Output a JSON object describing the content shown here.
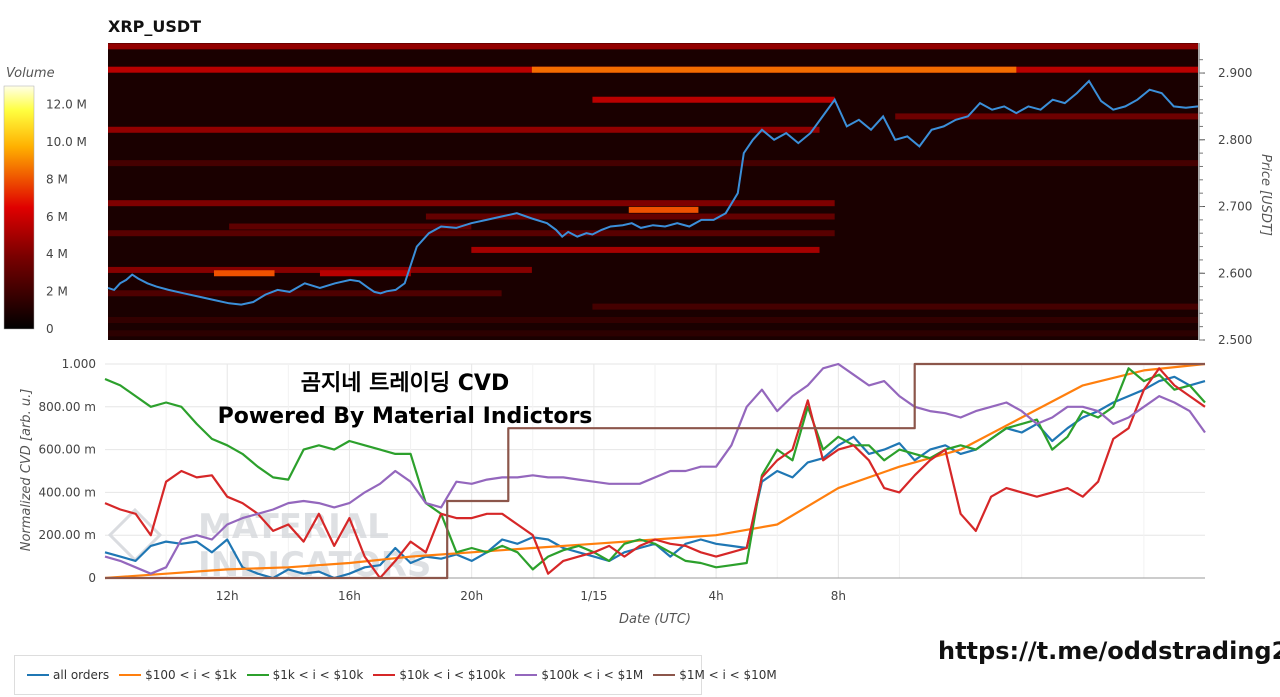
{
  "header": {
    "pair_title": "XRP_USDT"
  },
  "overlay": {
    "title_line1": "곰지네 트레이딩 CVD",
    "title_line2": "Powered By Material Indictors",
    "watermark_line1": "MATERIAL",
    "watermark_line2": "INDICATORS"
  },
  "footer": {
    "link": "https://t.me/oddstrading2"
  },
  "colorbar": {
    "title": "Volume",
    "ticks": [
      "12.0 M",
      "10.0 M",
      "8 M",
      "6 M",
      "4 M",
      "2 M",
      "0"
    ],
    "values": [
      12,
      10,
      8,
      6,
      4,
      2,
      0
    ],
    "max": 13.0
  },
  "colors": {
    "all": "#1f77b4",
    "s100": "#ff7f0e",
    "s1k": "#2ca02c",
    "s10k": "#d62728",
    "s100k": "#9467bd",
    "s1M": "#8c564b",
    "price": "#3b8fd9",
    "heat_bg": "#1a0000"
  },
  "chart_data": [
    {
      "type": "heatmap",
      "title": "XRP_USDT",
      "colorbar_title": "Volume",
      "ylabel": "Price [USDT]",
      "y_ticks": [
        "2.900",
        "2.800",
        "2.700",
        "2.600",
        "2.500"
      ],
      "y_tick_values": [
        2.9,
        2.8,
        2.7,
        2.6,
        2.5
      ],
      "ylim": [
        2.5,
        2.945
      ],
      "price_line": {
        "x_hours": [
          0,
          0.2,
          0.4,
          0.6,
          0.8,
          1.0,
          1.3,
          1.6,
          2.0,
          2.5,
          3.0,
          3.5,
          4.0,
          4.4,
          4.8,
          5.2,
          5.6,
          6.0,
          6.5,
          7.0,
          7.5,
          8.0,
          8.3,
          8.6,
          8.8,
          9.0,
          9.2,
          9.5,
          9.8,
          10.2,
          10.6,
          11.0,
          11.5,
          12.0,
          12.5,
          13.0,
          13.5,
          14.0,
          14.5,
          14.8,
          15.0,
          15.2,
          15.5,
          15.8,
          16.0,
          16.3,
          16.6,
          17.0,
          17.3,
          17.6,
          18.0,
          18.4,
          18.8,
          19.2,
          19.6,
          20.0,
          20.4,
          20.8,
          21.0,
          21.3,
          21.6,
          22.0,
          22.4,
          22.8,
          23.2,
          23.6,
          24.0,
          24.4,
          24.8,
          25.2,
          25.6,
          26.0,
          26.4,
          26.8,
          27.2,
          27.6,
          28.0,
          28.4,
          28.8,
          29.2,
          29.6,
          30.0,
          30.4,
          30.8,
          31.2,
          31.6,
          32.0,
          32.4,
          32.8,
          33.2,
          33.6,
          34.0,
          34.4,
          34.8,
          35.2,
          35.6,
          36.0
        ],
        "y": [
          2.578,
          2.575,
          2.585,
          2.59,
          2.598,
          2.592,
          2.585,
          2.58,
          2.575,
          2.57,
          2.565,
          2.56,
          2.555,
          2.553,
          2.557,
          2.568,
          2.575,
          2.572,
          2.585,
          2.578,
          2.585,
          2.59,
          2.588,
          2.578,
          2.572,
          2.57,
          2.573,
          2.575,
          2.585,
          2.64,
          2.66,
          2.67,
          2.668,
          2.675,
          2.68,
          2.685,
          2.69,
          2.682,
          2.675,
          2.665,
          2.655,
          2.662,
          2.655,
          2.66,
          2.658,
          2.665,
          2.67,
          2.672,
          2.675,
          2.668,
          2.672,
          2.67,
          2.675,
          2.67,
          2.68,
          2.68,
          2.69,
          2.72,
          2.78,
          2.8,
          2.815,
          2.8,
          2.81,
          2.795,
          2.81,
          2.835,
          2.86,
          2.82,
          2.83,
          2.815,
          2.835,
          2.8,
          2.805,
          2.79,
          2.815,
          2.82,
          2.83,
          2.835,
          2.855,
          2.845,
          2.85,
          2.84,
          2.85,
          2.845,
          2.86,
          2.855,
          2.87,
          2.888,
          2.858,
          2.845,
          2.85,
          2.86,
          2.875,
          2.87,
          2.85,
          2.848,
          2.85
        ]
      },
      "levels": [
        {
          "price": 2.94,
          "from": 0,
          "to": 36,
          "vol": 4.5
        },
        {
          "price": 2.905,
          "from": 0,
          "to": 36,
          "vol": 5.5
        },
        {
          "price": 2.905,
          "from": 14,
          "to": 30,
          "vol": 8.5
        },
        {
          "price": 2.86,
          "from": 16,
          "to": 24,
          "vol": 5.5
        },
        {
          "price": 2.835,
          "from": 26,
          "to": 36,
          "vol": 3.5
        },
        {
          "price": 2.815,
          "from": 0,
          "to": 23.5,
          "vol": 4.5
        },
        {
          "price": 2.765,
          "from": 0,
          "to": 36,
          "vol": 2.2
        },
        {
          "price": 2.705,
          "from": 0,
          "to": 24,
          "vol": 4.0
        },
        {
          "price": 2.695,
          "from": 17.2,
          "to": 19.5,
          "vol": 8.0
        },
        {
          "price": 2.685,
          "from": 10.5,
          "to": 24,
          "vol": 3.2
        },
        {
          "price": 2.67,
          "from": 4,
          "to": 12,
          "vol": 3.0
        },
        {
          "price": 2.66,
          "from": 0,
          "to": 24,
          "vol": 2.8
        },
        {
          "price": 2.635,
          "from": 12,
          "to": 23.5,
          "vol": 5.0
        },
        {
          "price": 2.605,
          "from": 0,
          "to": 14,
          "vol": 4.2
        },
        {
          "price": 2.6,
          "from": 3.5,
          "to": 5.5,
          "vol": 8.0
        },
        {
          "price": 2.6,
          "from": 7,
          "to": 10,
          "vol": 5.5
        },
        {
          "price": 2.57,
          "from": 0,
          "to": 13,
          "vol": 2.5
        },
        {
          "price": 2.55,
          "from": 16,
          "to": 36,
          "vol": 2.2
        },
        {
          "price": 2.53,
          "from": 0,
          "to": 36,
          "vol": 1.6
        },
        {
          "price": 2.51,
          "from": 0,
          "to": 36,
          "vol": 1.4
        }
      ]
    },
    {
      "type": "line",
      "xlabel": "Date (UTC)",
      "ylabel": "Normalized CVD [arb. u.]",
      "x_ticks": [
        "12h",
        "16h",
        "20h",
        "1/15",
        "4h",
        "8h"
      ],
      "x_tick_hours": [
        4,
        8,
        12,
        16,
        20,
        24
      ],
      "xlim_hours": [
        0,
        36
      ],
      "y_ticks": [
        "0",
        "200.00 m",
        "400.00 m",
        "600.00 m",
        "800.00 m",
        "1.000"
      ],
      "y_tick_values": [
        0,
        0.2,
        0.4,
        0.6,
        0.8,
        1.0
      ],
      "ylim": [
        0,
        1.0
      ],
      "grid": true,
      "legend": "bottom-left",
      "series": [
        {
          "name": "all orders",
          "key": "all",
          "x": [
            0,
            0.5,
            1,
            1.5,
            2,
            2.5,
            3,
            3.5,
            4,
            4.5,
            5,
            5.5,
            6,
            6.5,
            7,
            7.5,
            8,
            8.5,
            9,
            9.5,
            10,
            10.5,
            11,
            11.5,
            12,
            12.5,
            13,
            13.5,
            14,
            14.5,
            15,
            15.5,
            16,
            16.5,
            17,
            17.5,
            18,
            18.5,
            19,
            19.5,
            20,
            20.5,
            21,
            21.5,
            22,
            22.5,
            23,
            23.5,
            24,
            24.5,
            25,
            25.5,
            26,
            26.5,
            27,
            27.5,
            28,
            28.5,
            29,
            29.5,
            30,
            30.5,
            31,
            31.5,
            32,
            32.5,
            33,
            33.5,
            34,
            34.5,
            35,
            35.5,
            36
          ],
          "y": [
            0.12,
            0.1,
            0.08,
            0.15,
            0.17,
            0.16,
            0.17,
            0.12,
            0.18,
            0.05,
            0.02,
            0.0,
            0.04,
            0.02,
            0.03,
            0.0,
            0.02,
            0.05,
            0.06,
            0.14,
            0.07,
            0.1,
            0.09,
            0.11,
            0.08,
            0.12,
            0.18,
            0.16,
            0.19,
            0.18,
            0.14,
            0.12,
            0.1,
            0.08,
            0.12,
            0.14,
            0.16,
            0.1,
            0.16,
            0.18,
            0.16,
            0.15,
            0.14,
            0.45,
            0.5,
            0.47,
            0.54,
            0.56,
            0.62,
            0.66,
            0.58,
            0.6,
            0.63,
            0.55,
            0.6,
            0.62,
            0.58,
            0.6,
            0.65,
            0.7,
            0.68,
            0.72,
            0.64,
            0.7,
            0.75,
            0.78,
            0.82,
            0.85,
            0.88,
            0.92,
            0.94,
            0.9,
            0.92
          ]
        },
        {
          "name": "$100 < i < $1k",
          "key": "s100",
          "x": [
            0,
            2,
            4,
            6,
            8,
            10,
            12,
            14,
            16,
            18,
            20,
            22,
            24,
            26,
            28,
            30,
            32,
            34,
            36
          ],
          "y": [
            0.0,
            0.02,
            0.04,
            0.05,
            0.07,
            0.1,
            0.12,
            0.14,
            0.16,
            0.18,
            0.2,
            0.25,
            0.42,
            0.52,
            0.6,
            0.75,
            0.9,
            0.97,
            1.0
          ]
        },
        {
          "name": "$1k < i < $10k",
          "key": "s1k",
          "x": [
            0,
            0.5,
            1,
            1.5,
            2,
            2.5,
            3,
            3.5,
            4,
            4.5,
            5,
            5.5,
            6,
            6.5,
            7,
            7.5,
            8,
            8.5,
            9,
            9.5,
            10,
            10.5,
            11,
            11.5,
            12,
            12.5,
            13,
            13.5,
            14,
            14.5,
            15,
            15.5,
            16,
            16.5,
            17,
            17.5,
            18,
            18.5,
            19,
            19.5,
            20,
            20.5,
            21,
            21.5,
            22,
            22.5,
            23,
            23.5,
            24,
            24.5,
            25,
            25.5,
            26,
            26.5,
            27,
            27.5,
            28,
            28.5,
            29,
            29.5,
            30,
            30.5,
            31,
            31.5,
            32,
            32.5,
            33,
            33.5,
            34,
            34.5,
            35,
            35.5,
            36
          ],
          "y": [
            0.93,
            0.9,
            0.85,
            0.8,
            0.82,
            0.8,
            0.72,
            0.65,
            0.62,
            0.58,
            0.52,
            0.47,
            0.46,
            0.6,
            0.62,
            0.6,
            0.64,
            0.62,
            0.6,
            0.58,
            0.58,
            0.35,
            0.3,
            0.12,
            0.14,
            0.12,
            0.15,
            0.12,
            0.04,
            0.1,
            0.13,
            0.15,
            0.12,
            0.08,
            0.16,
            0.18,
            0.16,
            0.12,
            0.08,
            0.07,
            0.05,
            0.06,
            0.07,
            0.48,
            0.6,
            0.55,
            0.8,
            0.6,
            0.66,
            0.62,
            0.62,
            0.55,
            0.6,
            0.58,
            0.56,
            0.6,
            0.62,
            0.6,
            0.65,
            0.7,
            0.72,
            0.74,
            0.6,
            0.66,
            0.78,
            0.75,
            0.8,
            0.98,
            0.92,
            0.95,
            0.88,
            0.9,
            0.82
          ]
        },
        {
          "name": "$10k < i < $100k",
          "key": "s10k",
          "x": [
            0,
            0.5,
            1,
            1.5,
            2,
            2.5,
            3,
            3.5,
            4,
            4.5,
            5,
            5.5,
            6,
            6.5,
            7,
            7.5,
            8,
            8.5,
            9,
            9.5,
            10,
            10.5,
            11,
            11.5,
            12,
            12.5,
            13,
            13.5,
            14,
            14.5,
            15,
            15.5,
            16,
            16.5,
            17,
            17.5,
            18,
            18.5,
            19,
            19.5,
            20,
            20.5,
            21,
            21.5,
            22,
            22.5,
            23,
            23.5,
            24,
            24.5,
            25,
            25.5,
            26,
            26.5,
            27,
            27.5,
            28,
            28.5,
            29,
            29.5,
            30,
            30.5,
            31,
            31.5,
            32,
            32.5,
            33,
            33.5,
            34,
            34.5,
            35,
            35.5,
            36
          ],
          "y": [
            0.35,
            0.32,
            0.3,
            0.2,
            0.45,
            0.5,
            0.47,
            0.48,
            0.38,
            0.35,
            0.3,
            0.22,
            0.25,
            0.17,
            0.3,
            0.15,
            0.28,
            0.1,
            0.0,
            0.08,
            0.17,
            0.12,
            0.3,
            0.28,
            0.28,
            0.3,
            0.3,
            0.25,
            0.2,
            0.02,
            0.08,
            0.1,
            0.12,
            0.15,
            0.1,
            0.15,
            0.18,
            0.16,
            0.15,
            0.12,
            0.1,
            0.12,
            0.14,
            0.47,
            0.55,
            0.6,
            0.83,
            0.55,
            0.6,
            0.62,
            0.55,
            0.42,
            0.4,
            0.48,
            0.55,
            0.6,
            0.3,
            0.22,
            0.38,
            0.42,
            0.4,
            0.38,
            0.4,
            0.42,
            0.38,
            0.45,
            0.65,
            0.7,
            0.88,
            0.98,
            0.9,
            0.85,
            0.8
          ]
        },
        {
          "name": "$100k < i < $1M",
          "key": "s100k",
          "x": [
            0,
            0.5,
            1,
            1.5,
            2,
            2.5,
            3,
            3.5,
            4,
            4.5,
            5,
            5.5,
            6,
            6.5,
            7,
            7.5,
            8,
            8.5,
            9,
            9.5,
            10,
            10.5,
            11,
            11.5,
            12,
            12.5,
            13,
            13.5,
            14,
            14.5,
            15,
            15.5,
            16,
            16.5,
            17,
            17.5,
            18,
            18.5,
            19,
            19.5,
            20,
            20.5,
            21,
            21.5,
            22,
            22.5,
            23,
            23.5,
            24,
            24.5,
            25,
            25.5,
            26,
            26.5,
            27,
            27.5,
            28,
            28.5,
            29,
            29.5,
            30,
            30.5,
            31,
            31.5,
            32,
            32.5,
            33,
            33.5,
            34,
            34.5,
            35,
            35.5,
            36
          ],
          "y": [
            0.1,
            0.08,
            0.05,
            0.02,
            0.05,
            0.18,
            0.2,
            0.18,
            0.25,
            0.28,
            0.3,
            0.32,
            0.35,
            0.36,
            0.35,
            0.33,
            0.35,
            0.4,
            0.44,
            0.5,
            0.45,
            0.35,
            0.33,
            0.45,
            0.44,
            0.46,
            0.47,
            0.47,
            0.48,
            0.47,
            0.47,
            0.46,
            0.45,
            0.44,
            0.44,
            0.44,
            0.47,
            0.5,
            0.5,
            0.52,
            0.52,
            0.62,
            0.8,
            0.88,
            0.78,
            0.85,
            0.9,
            0.98,
            1.0,
            0.95,
            0.9,
            0.92,
            0.85,
            0.8,
            0.78,
            0.77,
            0.75,
            0.78,
            0.8,
            0.82,
            0.78,
            0.72,
            0.75,
            0.8,
            0.8,
            0.78,
            0.72,
            0.75,
            0.8,
            0.85,
            0.82,
            0.78,
            0.68
          ]
        },
        {
          "name": "$1M < i < $10M",
          "key": "s1M",
          "x": [
            0,
            11.2,
            11.2,
            13,
            13,
            13.2,
            13.2,
            26.5,
            26.5,
            36
          ],
          "y": [
            0,
            0,
            0.36,
            0.36,
            0.36,
            0.36,
            0.7,
            0.7,
            1.0,
            1.0
          ]
        }
      ]
    }
  ]
}
